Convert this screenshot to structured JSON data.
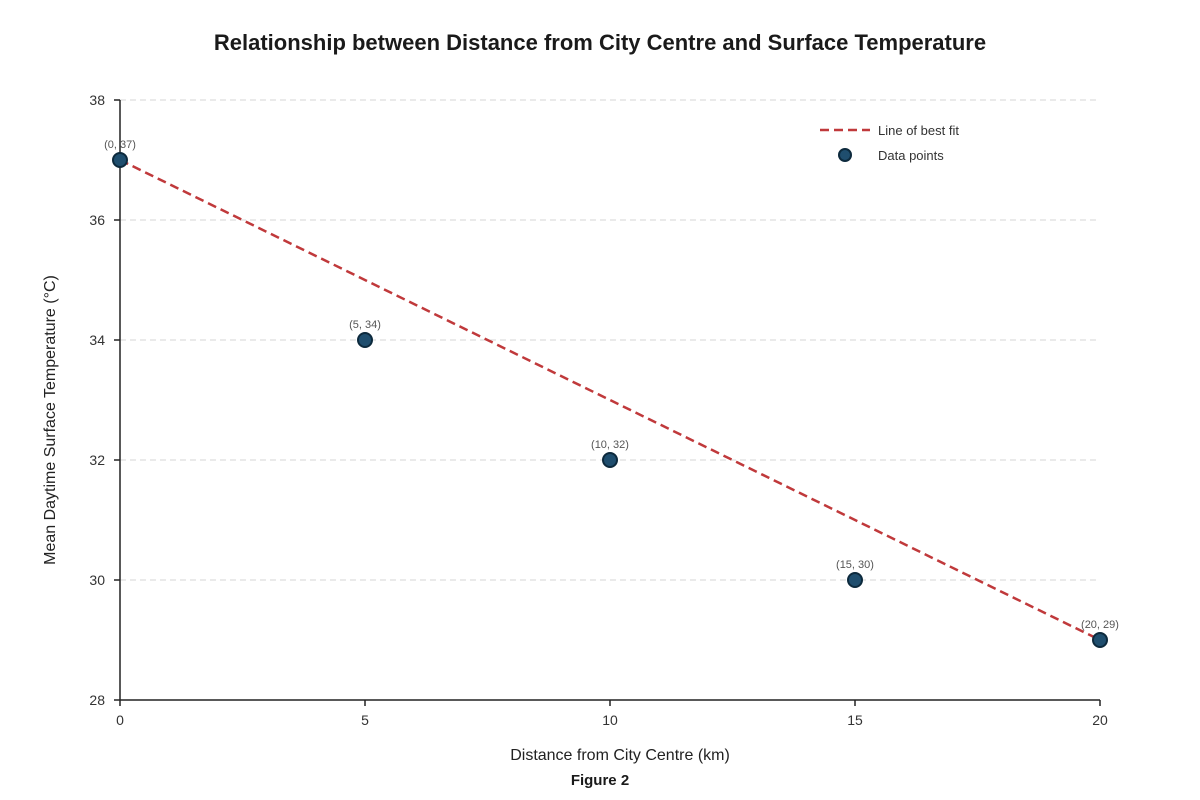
{
  "chart_data": {
    "type": "scatter",
    "title": "Relationship between Distance from City Centre and Surface Temperature",
    "xlabel": "Distance from City Centre (km)",
    "ylabel": "Mean Daytime Surface Temperature (°C)",
    "caption": "Figure 2",
    "xlim": [
      0,
      20
    ],
    "ylim": [
      28,
      38
    ],
    "xticks": [
      0,
      5,
      10,
      15,
      20
    ],
    "yticks": [
      28,
      30,
      32,
      34,
      36,
      38
    ],
    "grid": "horizontal dashed",
    "legend_position": "top-right",
    "series": [
      {
        "name": "Data points",
        "kind": "scatter",
        "x": [
          0,
          5,
          10,
          15,
          20
        ],
        "y": [
          37,
          34,
          32,
          30,
          29
        ],
        "labels": [
          "(0, 37)",
          "(5, 34)",
          "(10, 32)",
          "(15, 30)",
          "(20, 29)"
        ],
        "color": "#1f4e6e",
        "edge_color": "#0d2a3d"
      },
      {
        "name": "Line of best fit",
        "kind": "line",
        "style": "dashed",
        "x": [
          0,
          20
        ],
        "y": [
          37,
          29
        ],
        "color": "#c0393b"
      }
    ],
    "legend": [
      "Line of best fit",
      "Data points"
    ]
  }
}
